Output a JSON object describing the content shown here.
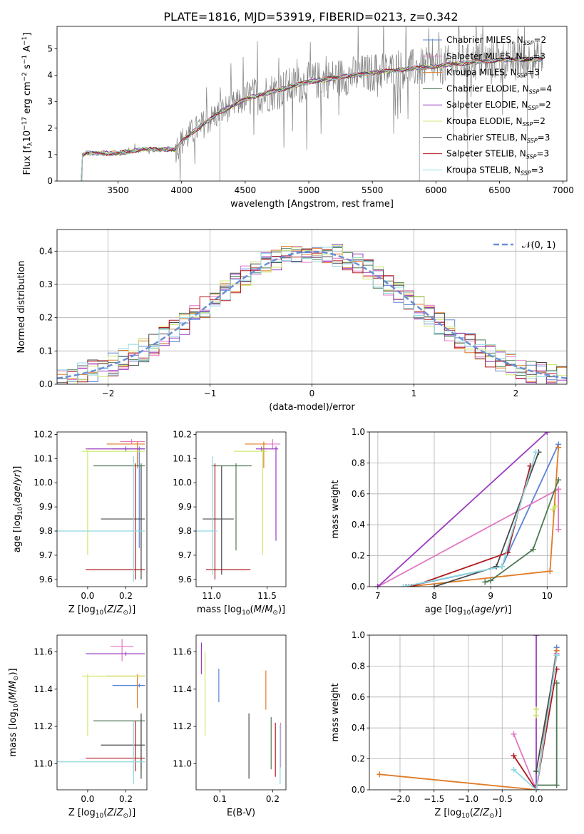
{
  "title": "PLATE=1816, MJD=53919, FIBERID=0213, z=0.342",
  "colors": {
    "Chabrier MILES": "#5b84d6",
    "Salpeter MILES": "#e377c2",
    "Kroupa MILES": "#e07b26",
    "Chabrier ELODIE": "#4f7a55",
    "Salpeter ELODIE": "#9b3bbf",
    "Kroupa ELODIE": "#cde86c",
    "Chabrier STELIB": "#4a4a4a",
    "Salpeter STELIB": "#b0161a",
    "Kroupa STELIB": "#8fd8e0"
  },
  "chart_data": [
    {
      "id": "spectrum",
      "type": "line",
      "title": "PLATE=1816, MJD=53919, FIBERID=0213, z=0.342",
      "xlabel": "wavelength [Angstrom, rest frame]",
      "ylabel": "Flux [f_λ10^-17 erg cm^-2 s^-1 A^-1]",
      "xlim": [
        3020,
        7030
      ],
      "ylim": [
        0,
        5.85
      ],
      "xticks": [
        3500,
        4000,
        4500,
        5000,
        5500,
        6000,
        6500,
        7000
      ],
      "yticks": [
        0,
        1,
        2,
        3,
        4,
        5
      ],
      "legend_position": "right",
      "legend": [
        {
          "series": "Chabrier MILES",
          "prefix": "Chabrier MILES, N",
          "sub": "SSP",
          "suffix": "=2"
        },
        {
          "series": "Salpeter MILES",
          "prefix": "Salpeter MILES, N",
          "sub": "SSP",
          "suffix": "=3"
        },
        {
          "series": "Kroupa MILES",
          "prefix": "Kroupa MILES, N",
          "sub": "SSP",
          "suffix": "=3"
        },
        {
          "series": "Chabrier ELODIE",
          "prefix": "Chabrier ELODIE, N",
          "sub": "SSP",
          "suffix": "=4"
        },
        {
          "series": "Salpeter ELODIE",
          "prefix": "Salpeter ELODIE, N",
          "sub": "SSP",
          "suffix": "=2"
        },
        {
          "series": "Kroupa ELODIE",
          "prefix": "Kroupa ELODIE, N",
          "sub": "SSP",
          "suffix": "=2"
        },
        {
          "series": "Chabrier STELIB",
          "prefix": "Chabrier STELIB, N",
          "sub": "SSP",
          "suffix": "=3"
        },
        {
          "series": "Salpeter STELIB",
          "prefix": "Salpeter STELIB, N",
          "sub": "SSP",
          "suffix": "=3"
        },
        {
          "series": "Kroupa STELIB",
          "prefix": "Kroupa STELIB, N",
          "sub": "SSP",
          "suffix": "=3"
        }
      ],
      "data_color": "#808080",
      "data_range": [
        3200,
        6840
      ],
      "continuum": {
        "x": [
          3200,
          3250,
          3500,
          3700,
          3950,
          4000,
          4100,
          4300,
          4500,
          4800,
          5000,
          5200,
          5500,
          5800,
          6000,
          6200,
          6400,
          6600,
          6840
        ],
        "y": [
          0.9,
          1.05,
          1.05,
          1.2,
          1.2,
          1.5,
          1.9,
          2.6,
          3.1,
          3.5,
          3.75,
          3.9,
          4.1,
          4.25,
          4.35,
          4.45,
          4.55,
          4.6,
          4.6
        ]
      }
    },
    {
      "id": "residuals",
      "type": "histogram",
      "xlabel": "(data-model)/error",
      "ylabel": "Normed distribution",
      "xlim": [
        -2.5,
        2.5
      ],
      "ylim": [
        0,
        0.465
      ],
      "xticks": [
        -2,
        -1,
        0,
        1,
        2
      ],
      "yticks": [
        0.0,
        0.1,
        0.2,
        0.3,
        0.4
      ],
      "grid": true,
      "reference": {
        "name": "N(0,1)",
        "label_main": "𝒩(0, 1)",
        "color": "#6a8fd6",
        "style": "dashed"
      },
      "legend_position": "top-right",
      "bin_width": 0.1
    },
    {
      "id": "age-vs-Z",
      "type": "errorbar",
      "xlabel": "Z [log10(Z/Z⊙)]",
      "ylabel": "age [log10(age/yr)]",
      "xlim": [
        -0.16,
        0.31
      ],
      "ylim": [
        9.57,
        10.21
      ],
      "xticks": [
        0.0,
        0.2
      ],
      "yticks": [
        9.6,
        9.7,
        9.8,
        9.9,
        10.0,
        10.1,
        10.2
      ],
      "points": [
        {
          "series": "Chabrier MILES",
          "x": 0.27,
          "xe": [
            0.13,
            0.3
          ],
          "y": 10.14,
          "ye": [
            9.73,
            10.15
          ]
        },
        {
          "series": "Salpeter MILES",
          "x": 0.23,
          "xe": [
            0.17,
            0.3
          ],
          "y": 10.17,
          "ye": [
            10.16,
            10.18
          ]
        },
        {
          "series": "Kroupa MILES",
          "x": 0.26,
          "xe": [
            0.1,
            0.3
          ],
          "y": 10.16,
          "ye": [
            10.06,
            10.17
          ]
        },
        {
          "series": "Chabrier ELODIE",
          "x": 0.28,
          "xe": [
            0.03,
            0.3
          ],
          "y": 10.07,
          "ye": [
            9.72,
            10.08
          ]
        },
        {
          "series": "Salpeter ELODIE",
          "x": 0.2,
          "xe": [
            -0.01,
            0.3
          ],
          "y": 10.14,
          "ye": [
            10.13,
            10.15
          ]
        },
        {
          "series": "Kroupa ELODIE",
          "x": 0.0,
          "xe": [
            -0.03,
            0.3
          ],
          "y": 10.13,
          "ye": [
            9.7,
            10.14
          ]
        },
        {
          "series": "Chabrier STELIB",
          "x": 0.28,
          "xe": [
            0.07,
            0.3
          ],
          "y": 9.85,
          "ye": [
            9.6,
            10.07
          ]
        },
        {
          "series": "Salpeter STELIB",
          "x": 0.25,
          "xe": [
            -0.01,
            0.3
          ],
          "y": 9.64,
          "ye": [
            9.6,
            10.08
          ]
        },
        {
          "series": "Kroupa STELIB",
          "x": 0.24,
          "xe": [
            -0.16,
            0.3
          ],
          "y": 9.8,
          "ye": [
            9.59,
            10.11
          ]
        }
      ]
    },
    {
      "id": "age-vs-mass",
      "type": "errorbar",
      "xlabel": "mass [log10(M/M⊙)]",
      "ylabel": "",
      "xlim": [
        10.86,
        11.67
      ],
      "ylim": [
        9.57,
        10.21
      ],
      "xticks": [
        11.0,
        11.5
      ],
      "yticks": [
        9.6,
        9.7,
        9.8,
        9.9,
        10.0,
        10.1,
        10.2
      ],
      "points": [
        {
          "series": "Chabrier MILES",
          "x": 11.45,
          "xe": [
            11.44,
            11.46
          ],
          "y": 10.14,
          "ye": [
            10.13,
            10.15
          ]
        },
        {
          "series": "Salpeter MILES",
          "x": 11.55,
          "xe": [
            11.5,
            11.62
          ],
          "y": 10.16,
          "ye": [
            10.14,
            10.18
          ]
        },
        {
          "series": "Kroupa MILES",
          "x": 11.47,
          "xe": [
            11.3,
            11.5
          ],
          "y": 10.16,
          "ye": [
            10.06,
            10.17
          ]
        },
        {
          "series": "Chabrier ELODIE",
          "x": 11.22,
          "xe": [
            11.0,
            11.36
          ],
          "y": 10.07,
          "ye": [
            9.72,
            10.08
          ]
        },
        {
          "series": "Salpeter ELODIE",
          "x": 11.58,
          "xe": [
            11.4,
            11.6
          ],
          "y": 10.14,
          "ye": [
            9.76,
            10.15
          ]
        },
        {
          "series": "Kroupa ELODIE",
          "x": 11.46,
          "xe": [
            11.2,
            11.5
          ],
          "y": 10.13,
          "ye": [
            9.7,
            10.14
          ]
        },
        {
          "series": "Chabrier STELIB",
          "x": 11.09,
          "xe": [
            10.92,
            11.2
          ],
          "y": 9.85,
          "ye": [
            9.62,
            10.07
          ]
        },
        {
          "series": "Salpeter STELIB",
          "x": 11.03,
          "xe": [
            10.95,
            11.35
          ],
          "y": 9.64,
          "ye": [
            9.6,
            10.08
          ]
        },
        {
          "series": "Kroupa STELIB",
          "x": 11.01,
          "xe": [
            10.86,
            11.05
          ],
          "y": 9.8,
          "ye": [
            9.62,
            10.11
          ]
        }
      ]
    },
    {
      "id": "mass-weight-vs-age",
      "type": "line",
      "xlabel": "age [log10(age/yr)]",
      "ylabel": "mass weight",
      "xlim": [
        6.85,
        10.35
      ],
      "ylim": [
        0,
        1
      ],
      "xticks": [
        7,
        8,
        9,
        10
      ],
      "yticks": [
        0.0,
        0.2,
        0.4,
        0.6,
        0.8,
        1.0
      ],
      "grid": true,
      "series": [
        {
          "name": "Chabrier MILES",
          "x": [
            7.5,
            9.2,
            10.2
          ],
          "y": [
            0.0,
            0.13,
            0.92
          ]
        },
        {
          "name": "Salpeter MILES",
          "x": [
            7.0,
            10.2,
            10.2
          ],
          "y": [
            0.0,
            0.63,
            0.37
          ]
        },
        {
          "name": "Kroupa MILES",
          "x": [
            7.55,
            10.05,
            10.2
          ],
          "y": [
            0.0,
            0.1,
            0.9
          ]
        },
        {
          "name": "Chabrier ELODIE",
          "x": [
            8.9,
            9.0,
            9.75,
            10.2
          ],
          "y": [
            0.03,
            0.04,
            0.24,
            0.69
          ]
        },
        {
          "name": "Salpeter ELODIE",
          "x": [
            7.0,
            10.0
          ],
          "y": [
            0.0,
            1.0
          ]
        },
        {
          "name": "Kroupa ELODIE",
          "x": [
            10.1,
            10.15
          ],
          "y": [
            0.5,
            0.52
          ]
        },
        {
          "name": "Chabrier STELIB",
          "x": [
            8.0,
            9.1,
            9.85
          ],
          "y": [
            0.0,
            0.13,
            0.87
          ]
        },
        {
          "name": "Salpeter STELIB",
          "x": [
            7.6,
            9.3,
            9.7
          ],
          "y": [
            0.0,
            0.22,
            0.78
          ]
        },
        {
          "name": "Kroupa STELIB",
          "x": [
            7.45,
            9.2,
            9.8
          ],
          "y": [
            0.0,
            0.13,
            0.87
          ]
        }
      ]
    },
    {
      "id": "mass-vs-Z",
      "type": "errorbar",
      "xlabel": "Z [log10(Z/Z⊙)]",
      "ylabel": "mass [log10(M/M⊙)]",
      "xlim": [
        -0.16,
        0.31
      ],
      "ylim": [
        10.86,
        11.69
      ],
      "xticks": [
        0.0,
        0.2
      ],
      "yticks": [
        11.0,
        11.2,
        11.4,
        11.6
      ],
      "points": [
        {
          "series": "Chabrier MILES",
          "x": 0.27,
          "xe": [
            0.13,
            0.3
          ],
          "y": 11.42,
          "ye": [
            11.41,
            11.43
          ]
        },
        {
          "series": "Salpeter MILES",
          "x": 0.18,
          "xe": [
            0.12,
            0.24
          ],
          "y": 11.63,
          "ye": [
            11.55,
            11.67
          ]
        },
        {
          "series": "Kroupa MILES",
          "x": 0.26,
          "xe": [
            0.1,
            0.3
          ],
          "y": 11.47,
          "ye": [
            11.3,
            11.48
          ]
        },
        {
          "series": "Chabrier ELODIE",
          "x": 0.28,
          "xe": [
            0.03,
            0.3
          ],
          "y": 11.23,
          "ye": [
            10.97,
            11.24
          ]
        },
        {
          "series": "Salpeter ELODIE",
          "x": 0.2,
          "xe": [
            -0.01,
            0.3
          ],
          "y": 11.59,
          "ye": [
            11.58,
            11.6
          ]
        },
        {
          "series": "Kroupa ELODIE",
          "x": 0.0,
          "xe": [
            -0.03,
            0.3
          ],
          "y": 11.47,
          "ye": [
            11.15,
            11.48
          ]
        },
        {
          "series": "Chabrier STELIB",
          "x": 0.28,
          "xe": [
            0.07,
            0.3
          ],
          "y": 11.1,
          "ye": [
            10.92,
            11.27
          ]
        },
        {
          "series": "Salpeter STELIB",
          "x": 0.25,
          "xe": [
            -0.01,
            0.3
          ],
          "y": 11.03,
          "ye": [
            10.96,
            11.23
          ]
        },
        {
          "series": "Kroupa STELIB",
          "x": 0.24,
          "xe": [
            -0.16,
            0.3
          ],
          "y": 11.01,
          "ye": [
            10.89,
            11.23
          ]
        }
      ]
    },
    {
      "id": "mass-vs-ebv",
      "type": "errorbar",
      "xlabel": "E(B-V)",
      "ylabel": "",
      "xlim": [
        0.055,
        0.225
      ],
      "ylim": [
        10.86,
        11.69
      ],
      "xticks": [
        0.1,
        0.2
      ],
      "yticks": [
        11.0,
        11.2,
        11.4,
        11.6
      ],
      "points": [
        {
          "series": "Chabrier MILES",
          "x": 0.098,
          "y": 11.42,
          "ye": [
            11.33,
            11.51
          ]
        },
        {
          "series": "Salpeter MILES",
          "x": 0.215,
          "y": 11.1,
          "ye": [
            10.98,
            11.22
          ]
        },
        {
          "series": "Kroupa MILES",
          "x": 0.187,
          "y": 11.4,
          "ye": [
            11.29,
            11.5
          ]
        },
        {
          "series": "Chabrier ELODIE",
          "x": 0.197,
          "y": 11.12,
          "ye": [
            10.97,
            11.25
          ]
        },
        {
          "series": "Salpeter ELODIE",
          "x": 0.065,
          "y": 11.57,
          "ye": [
            11.48,
            11.65
          ]
        },
        {
          "series": "Kroupa ELODIE",
          "x": 0.072,
          "y": 11.45,
          "ye": [
            11.15,
            11.6
          ]
        },
        {
          "series": "Chabrier STELIB",
          "x": 0.155,
          "y": 11.1,
          "ye": [
            10.92,
            11.27
          ]
        },
        {
          "series": "Salpeter STELIB",
          "x": 0.205,
          "y": 11.05,
          "ye": [
            10.93,
            11.22
          ]
        },
        {
          "series": "Kroupa STELIB",
          "x": 0.214,
          "y": 11.02,
          "ye": [
            10.89,
            11.21
          ]
        }
      ]
    },
    {
      "id": "mass-weight-vs-Z",
      "type": "line",
      "xlabel": "Z [log10(Z/Z⊙)]",
      "ylabel": "mass weight",
      "xlim": [
        -2.45,
        0.45
      ],
      "ylim": [
        0,
        1
      ],
      "xticks": [
        -2.0,
        -1.5,
        -1.0,
        -0.5,
        0.0
      ],
      "yticks": [
        0.0,
        0.2,
        0.4,
        0.6,
        0.8,
        1.0
      ],
      "grid": true,
      "series": [
        {
          "name": "Chabrier MILES",
          "x": [
            0.0,
            0.3
          ],
          "y": [
            0.0,
            0.92
          ]
        },
        {
          "name": "Salpeter MILES",
          "x": [
            -0.33,
            0.0,
            0.3
          ],
          "y": [
            0.36,
            0.0,
            0.88
          ]
        },
        {
          "name": "Kroupa MILES",
          "x": [
            -2.3,
            0.0,
            0.3
          ],
          "y": [
            0.1,
            0.0,
            0.9
          ]
        },
        {
          "name": "Chabrier ELODIE",
          "x": [
            0.0,
            0.3,
            0.3
          ],
          "y": [
            0.03,
            0.03,
            0.69
          ]
        },
        {
          "name": "Salpeter ELODIE",
          "x": [
            0.0,
            0.0
          ],
          "y": [
            0.0,
            1.0
          ]
        },
        {
          "name": "Kroupa ELODIE",
          "x": [
            0.0,
            0.0
          ],
          "y": [
            0.48,
            0.52
          ]
        },
        {
          "name": "Chabrier STELIB",
          "x": [
            0.0,
            0.3
          ],
          "y": [
            0.12,
            0.87
          ]
        },
        {
          "name": "Salpeter STELIB",
          "x": [
            -0.33,
            0.0,
            0.3
          ],
          "y": [
            0.22,
            0.0,
            0.78
          ]
        },
        {
          "name": "Kroupa STELIB",
          "x": [
            -0.33,
            0.0,
            0.3
          ],
          "y": [
            0.13,
            0.0,
            0.87
          ]
        }
      ]
    }
  ]
}
